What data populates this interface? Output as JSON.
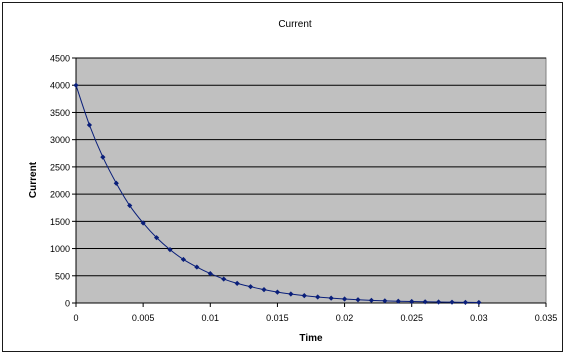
{
  "chart_data": {
    "type": "scatter",
    "title": "Current",
    "xlabel": "Time",
    "ylabel": "Current",
    "xlim": [
      0,
      0.035
    ],
    "ylim": [
      0,
      4500
    ],
    "x_ticks": [
      0,
      0.005,
      0.01,
      0.015,
      0.02,
      0.025,
      0.03,
      0.035
    ],
    "x_tick_labels": [
      "0",
      "0.005",
      "0.01",
      "0.015",
      "0.02",
      "0.025",
      "0.03",
      "0.035"
    ],
    "y_ticks": [
      0,
      500,
      1000,
      1500,
      2000,
      2500,
      3000,
      3500,
      4000,
      4500
    ],
    "y_tick_labels": [
      "0",
      "500",
      "1000",
      "1500",
      "2000",
      "2500",
      "3000",
      "3500",
      "4000",
      "4500"
    ],
    "grid": "horizontal",
    "legend": "none",
    "series": [
      {
        "color": "#0a1f7a",
        "marker": "diamond",
        "line": "smooth",
        "x": [
          0,
          0.001,
          0.002,
          0.003,
          0.004,
          0.005,
          0.006,
          0.007,
          0.008,
          0.009,
          0.01,
          0.011,
          0.012,
          0.013,
          0.014,
          0.015,
          0.016,
          0.017,
          0.018,
          0.019,
          0.02,
          0.021,
          0.022,
          0.023,
          0.024,
          0.025,
          0.026,
          0.027,
          0.028,
          0.029,
          0.03
        ],
        "y": [
          4000,
          3270,
          2680,
          2200,
          1790,
          1470,
          1200,
          980,
          800,
          660,
          540,
          440,
          360,
          300,
          245,
          200,
          165,
          135,
          110,
          90,
          73,
          60,
          49,
          40,
          33,
          27,
          22,
          18,
          15,
          12,
          10
        ]
      }
    ],
    "colors": {
      "plot_background": "#c0c0c0",
      "gridline": "#000000",
      "series": "#0a1f7a"
    }
  }
}
